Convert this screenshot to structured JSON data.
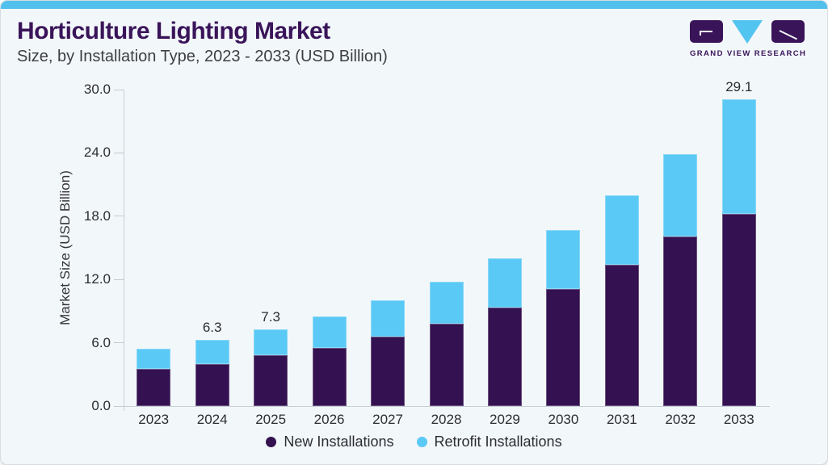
{
  "header": {
    "title": "Horticulture Lighting Market",
    "subtitle": "Size, by Installation Type, 2023 - 2033 (USD Billion)"
  },
  "logo": {
    "text": "GRAND VIEW RESEARCH"
  },
  "chart_data": {
    "type": "bar",
    "stacked": true,
    "title": "Horticulture Lighting Market Size, by Installation Type, 2023 - 2033 (USD Billion)",
    "ylabel": "Market Size (USD Billion)",
    "xlabel": "",
    "ylim": [
      0,
      30
    ],
    "yticks": [
      0,
      6,
      12,
      18,
      24,
      30
    ],
    "ytick_labels": [
      "0.0",
      "6.0",
      "12.0",
      "18.0",
      "24.0",
      "30.0"
    ],
    "grid": false,
    "legend_position": "bottom",
    "categories": [
      "2023",
      "2024",
      "2025",
      "2026",
      "2027",
      "2028",
      "2029",
      "2030",
      "2031",
      "2032",
      "2033"
    ],
    "series": [
      {
        "name": "New Installations",
        "color": "#341150",
        "values": [
          3.5,
          4.0,
          4.8,
          5.5,
          6.6,
          7.8,
          9.3,
          11.1,
          13.4,
          16.1,
          18.2
        ]
      },
      {
        "name": "Retrofit Installations",
        "color": "#5bc9f5",
        "values": [
          1.9,
          2.3,
          2.5,
          3.0,
          3.4,
          4.0,
          4.7,
          5.6,
          6.6,
          7.8,
          10.9
        ]
      }
    ],
    "totals": [
      5.4,
      6.3,
      7.3,
      8.5,
      10.0,
      11.8,
      14.0,
      16.7,
      20.0,
      23.9,
      29.1
    ],
    "total_labels": [
      "",
      "6.3",
      "7.3",
      "",
      "",
      "",
      "",
      "",
      "",
      "",
      "29.1"
    ]
  },
  "colors": {
    "accent_bar": "#52c0ec",
    "title": "#3a1459",
    "bar_new": "#341150",
    "bar_retrofit": "#5bc9f5",
    "background": "#f2f7fa",
    "axis_line": "#c8ced6",
    "text": "#2c2d33"
  }
}
